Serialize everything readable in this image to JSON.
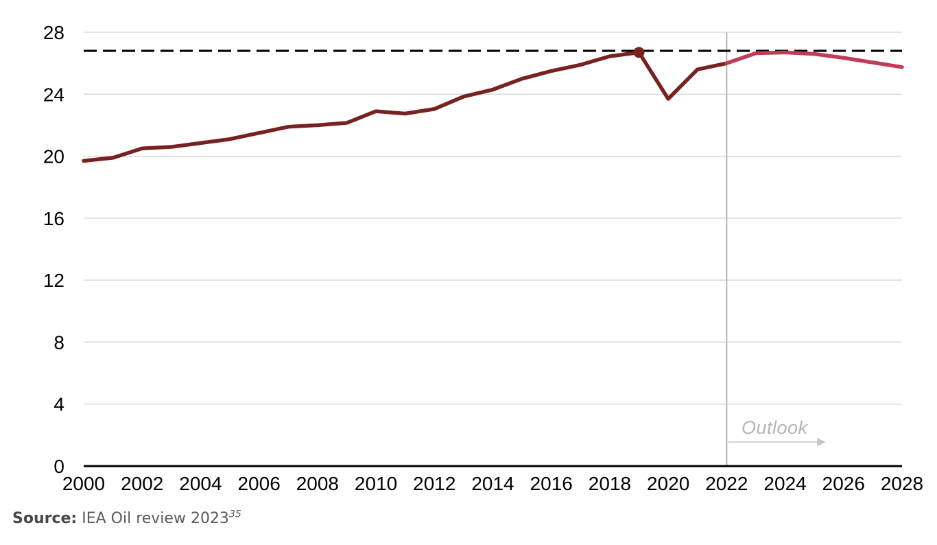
{
  "chart_data": {
    "type": "line",
    "x_ticks": [
      2000,
      2002,
      2004,
      2006,
      2008,
      2010,
      2012,
      2014,
      2016,
      2018,
      2020,
      2022,
      2024,
      2026,
      2028
    ],
    "y_ticks": [
      0,
      4,
      8,
      12,
      16,
      20,
      24,
      28
    ],
    "xlim": [
      2000,
      2028
    ],
    "ylim": [
      0,
      28
    ],
    "grid": "horizontal",
    "legend": "none",
    "series": [
      {
        "name": "historical",
        "color": "#772220",
        "x": [
          2000,
          2001,
          2002,
          2003,
          2004,
          2005,
          2006,
          2007,
          2008,
          2009,
          2010,
          2011,
          2012,
          2013,
          2014,
          2015,
          2016,
          2017,
          2018,
          2019,
          2020,
          2021,
          2022
        ],
        "values": [
          19.7,
          19.9,
          20.5,
          20.6,
          20.85,
          21.1,
          21.5,
          21.9,
          22.0,
          22.15,
          22.9,
          22.75,
          23.05,
          23.85,
          24.3,
          25.0,
          25.5,
          25.9,
          26.45,
          26.7,
          23.7,
          25.6,
          26.0
        ]
      },
      {
        "name": "outlook",
        "color": "#c13a58",
        "x": [
          2022,
          2023,
          2024,
          2025,
          2026,
          2027,
          2028
        ],
        "values": [
          26.0,
          26.65,
          26.7,
          26.6,
          26.35,
          26.05,
          25.75
        ]
      }
    ],
    "reference_line": {
      "value": 26.8,
      "style": "dashed",
      "color": "#000000"
    },
    "peak_marker": {
      "x": 2019,
      "value": 26.7,
      "color": "#772220"
    },
    "divider": {
      "x": 2022,
      "color": "#b5b5b5"
    },
    "annotation": {
      "text": "Outlook",
      "color": "#b5b5b5",
      "arrow_color": "#c6c6c6"
    }
  },
  "source": {
    "label": "Source:",
    "text": " IEA Oil review 2023",
    "footnote": "35"
  }
}
